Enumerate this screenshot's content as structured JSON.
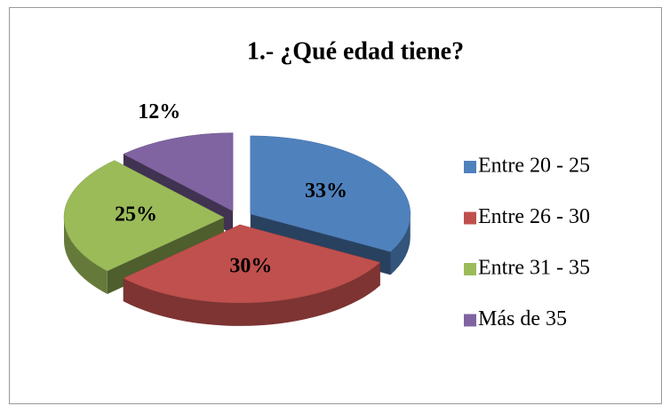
{
  "chart_data": {
    "type": "pie",
    "title": "1.- ¿Qué edad tiene?",
    "categories": [
      "Entre 20 - 25",
      "Entre 26 - 30",
      "Entre 31 - 35",
      "Más de 35"
    ],
    "values": [
      33,
      30,
      25,
      12
    ],
    "value_labels": [
      "33%",
      "30%",
      "25%",
      "12%"
    ],
    "colors": [
      "#4f81bd",
      "#c0504d",
      "#9bbb59",
      "#8064a2"
    ],
    "legend": "right"
  }
}
